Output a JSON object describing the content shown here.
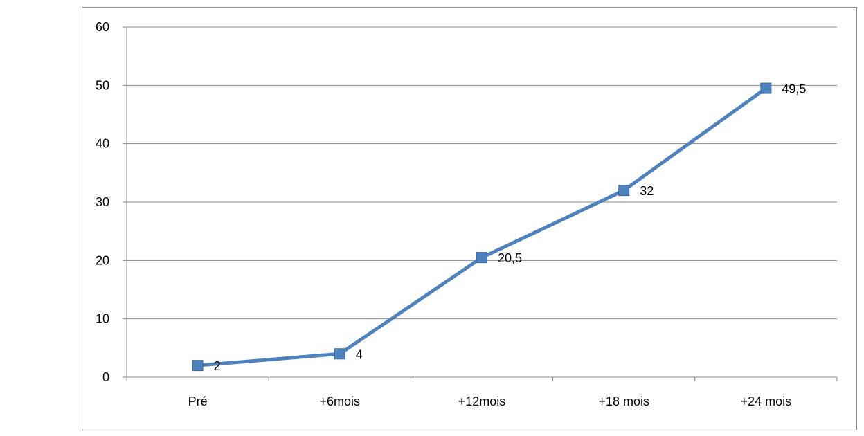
{
  "chart_data": {
    "type": "line",
    "categories": [
      "Pré",
      "+6mois",
      "+12mois",
      "+18 mois",
      "+24 mois"
    ],
    "series": [
      {
        "values": [
          2,
          4,
          20.5,
          32,
          49.5
        ],
        "labels": [
          "2",
          "4",
          "20,5",
          "32",
          "49,5"
        ],
        "color": "#4f81bd",
        "marker": "square"
      }
    ],
    "ylim": [
      0,
      60
    ],
    "yticks": [
      0,
      10,
      20,
      30,
      40,
      50,
      60
    ],
    "ytick_labels": [
      "0",
      "10",
      "20",
      "30",
      "40",
      "50",
      "60"
    ],
    "grid": true,
    "legend": "none",
    "title": "",
    "xlabel": "",
    "ylabel": ""
  }
}
